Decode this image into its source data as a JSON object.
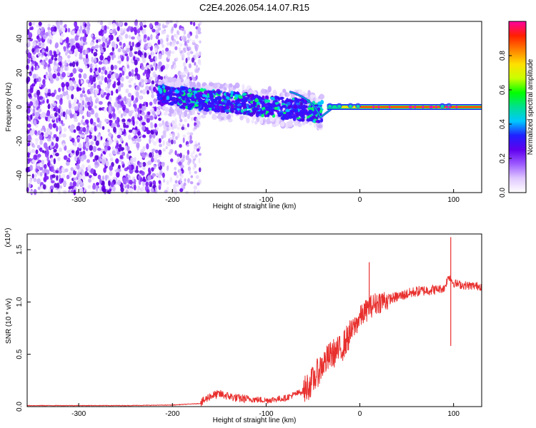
{
  "chart_data": [
    {
      "type": "heatmap",
      "title": "C2E4.2026.054.14.07.R15",
      "xlabel": "Height of straight line (km)",
      "ylabel": "Frequency (Hz)",
      "xlim": [
        -355,
        130
      ],
      "ylim": [
        -50,
        50
      ],
      "xticks": [
        -300,
        -200,
        -100,
        0,
        100
      ],
      "yticks": [
        -40,
        -20,
        0,
        20,
        40
      ],
      "colorbar": {
        "label": "Normalized spectral amplitude",
        "range": [
          0.0,
          1.0
        ],
        "ticks": [
          0.0,
          0.2,
          0.4,
          0.6,
          0.8
        ],
        "tick_labels": [
          "0.0",
          "0.2",
          "0.4",
          "0.6",
          "0.8"
        ],
        "colors": [
          "#ffffff",
          "#e0c8ff",
          "#9d5bff",
          "#6000ee",
          "#2020ff",
          "#00c8ff",
          "#00e090",
          "#00ff00",
          "#c8ff00",
          "#ffe000",
          "#ff8000",
          "#ff2000",
          "#ff00a0"
        ]
      },
      "regions": [
        {
          "name": "noise",
          "x_range": [
            -355,
            -210
          ],
          "freq_range": [
            -50,
            50
          ],
          "amplitude": 0.15
        },
        {
          "name": "noise-fading",
          "x_range": [
            -210,
            -170
          ],
          "freq_range": [
            -50,
            50
          ],
          "amplitude": 0.05
        },
        {
          "name": "scatter-band",
          "x_range": [
            -215,
            -40
          ],
          "center_hz": [
            7,
            -3
          ],
          "width_hz": 8,
          "amplitude": 0.3
        },
        {
          "name": "carrier-line",
          "x_range": [
            -40,
            130
          ],
          "center_hz": 0,
          "amplitude": 0.9
        }
      ]
    },
    {
      "type": "line",
      "title": "",
      "xlabel": "Height of straight line (km)",
      "ylabel": "SNR (10 * v/v)",
      "y_multiplier": "(x10⁴)",
      "xlim": [
        -355,
        130
      ],
      "ylim": [
        0.0,
        1.65
      ],
      "xticks": [
        -300,
        -200,
        -100,
        0,
        100
      ],
      "yticks": [
        0.0,
        0.5,
        1.0,
        1.5
      ],
      "ytick_labels": [
        "0.0",
        "0.5",
        "1.0",
        "1.5"
      ],
      "color": "#e8302e",
      "series": [
        {
          "name": "SNR",
          "x": [
            -355,
            -300,
            -250,
            -200,
            -170,
            -160,
            -150,
            -130,
            -100,
            -80,
            -60,
            -50,
            -40,
            -30,
            -20,
            -10,
            0,
            10,
            20,
            40,
            60,
            80,
            90,
            95,
            100,
            110,
            130
          ],
          "y": [
            0.01,
            0.01,
            0.01,
            0.015,
            0.03,
            0.1,
            0.12,
            0.08,
            0.06,
            0.08,
            0.15,
            0.25,
            0.4,
            0.5,
            0.55,
            0.7,
            0.85,
            0.95,
            1.0,
            1.05,
            1.1,
            1.12,
            1.13,
            1.25,
            1.18,
            1.16,
            1.15
          ]
        }
      ],
      "spikes": [
        {
          "x": 10,
          "y": 1.38
        },
        {
          "x": 97,
          "y": 1.62
        },
        {
          "x": 97,
          "y": 0.58
        }
      ]
    }
  ]
}
